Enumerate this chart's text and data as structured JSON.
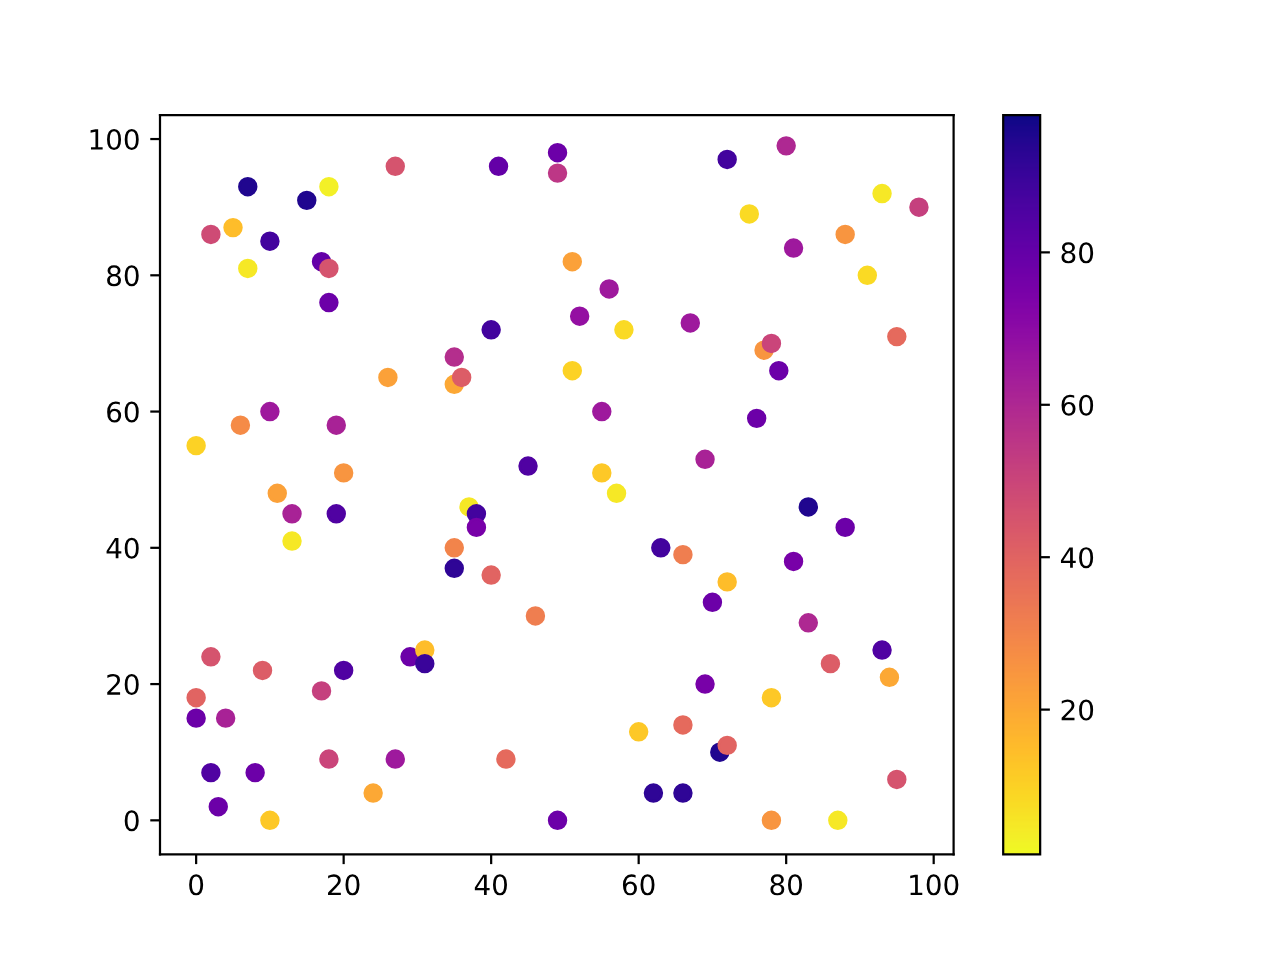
{
  "chart_data": {
    "type": "scatter",
    "xlim": [
      -4.9,
      102.7
    ],
    "ylim": [
      -5,
      103.5
    ],
    "xticks": [
      0,
      20,
      40,
      60,
      80,
      100
    ],
    "yticks": [
      0,
      20,
      40,
      60,
      80,
      100
    ],
    "clim": [
      1,
      98
    ],
    "cticks": [
      20,
      40,
      60,
      80
    ],
    "marker": "circle",
    "grid": false,
    "legend": false,
    "x": [
      0,
      0,
      0,
      2,
      2,
      2,
      3,
      4,
      5,
      6,
      7,
      7,
      8,
      9,
      10,
      10,
      10,
      11,
      13,
      13,
      15,
      17,
      18,
      18,
      18,
      17,
      18,
      19,
      19,
      20,
      20,
      24,
      26,
      27,
      27,
      29,
      31,
      31,
      35,
      35,
      36,
      35,
      35,
      37,
      38,
      38,
      40,
      40,
      41,
      42,
      45,
      46,
      49,
      49,
      49,
      51,
      51,
      52,
      55,
      55,
      56,
      57,
      58,
      60,
      62,
      63,
      66,
      66,
      66,
      67,
      69,
      69,
      70,
      71,
      72,
      72,
      72,
      75,
      76,
      77,
      78,
      78,
      78,
      79,
      80,
      81,
      81,
      83,
      83,
      86,
      87,
      88,
      88,
      91,
      93,
      93,
      94,
      95,
      95,
      98
    ],
    "values": [
      55,
      18,
      15,
      86,
      24,
      7,
      2,
      15,
      87,
      58,
      93,
      81,
      7,
      22,
      85,
      60,
      0,
      48,
      45,
      41,
      91,
      82,
      81,
      93,
      76,
      19,
      9,
      58,
      45,
      51,
      22,
      4,
      65,
      96,
      9,
      24,
      25,
      23,
      68,
      64,
      65,
      40,
      37,
      46,
      45,
      43,
      36,
      72,
      96,
      9,
      52,
      30,
      98,
      95,
      0,
      82,
      66,
      74,
      60,
      51,
      78,
      48,
      72,
      13,
      4,
      40,
      39,
      14,
      4,
      73,
      53,
      20,
      32,
      10,
      11,
      35,
      97,
      89,
      59,
      69,
      70,
      18,
      0,
      66,
      99,
      84,
      38,
      46,
      29,
      23,
      0,
      86,
      43,
      80,
      92,
      25,
      21,
      71,
      6,
      90
    ],
    "cvalues": [
      10,
      40,
      78,
      48,
      45,
      85,
      78,
      62,
      15,
      28,
      95,
      5,
      78,
      42,
      88,
      65,
      12,
      22,
      62,
      5,
      95,
      80,
      45,
      3,
      78,
      52,
      50,
      62,
      85,
      25,
      85,
      20,
      22,
      45,
      65,
      78,
      15,
      90,
      58,
      20,
      42,
      30,
      92,
      5,
      88,
      75,
      40,
      88,
      80,
      38,
      85,
      32,
      78,
      55,
      78,
      22,
      10,
      68,
      65,
      12,
      65,
      5,
      8,
      12,
      92,
      88,
      32,
      38,
      92,
      65,
      62,
      75,
      78,
      95,
      40,
      15,
      88,
      8,
      78,
      25,
      50,
      12,
      25,
      78,
      60,
      65,
      75,
      95,
      60,
      42,
      5,
      25,
      78,
      8,
      5,
      85,
      20,
      38,
      45,
      52
    ]
  }
}
